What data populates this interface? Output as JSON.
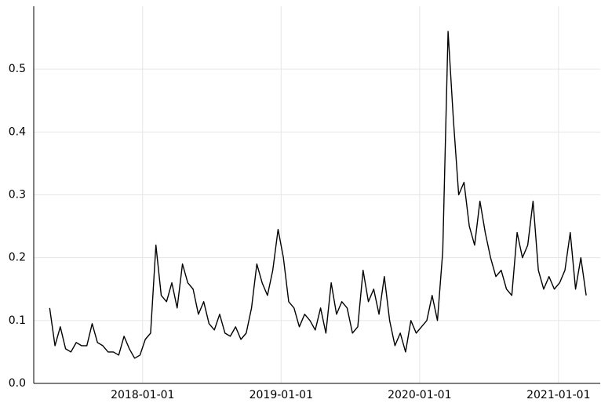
{
  "chart_data": {
    "type": "line",
    "x": [
      "2017-05-01",
      "2017-05-15",
      "2017-05-29",
      "2017-06-12",
      "2017-06-26",
      "2017-07-10",
      "2017-07-24",
      "2017-08-07",
      "2017-08-21",
      "2017-09-04",
      "2017-09-18",
      "2017-10-02",
      "2017-10-16",
      "2017-10-30",
      "2017-11-13",
      "2017-11-27",
      "2017-12-11",
      "2017-12-25",
      "2018-01-08",
      "2018-01-22",
      "2018-02-05",
      "2018-02-19",
      "2018-03-05",
      "2018-03-19",
      "2018-04-02",
      "2018-04-16",
      "2018-04-30",
      "2018-05-14",
      "2018-05-28",
      "2018-06-11",
      "2018-06-25",
      "2018-07-09",
      "2018-07-23",
      "2018-08-06",
      "2018-08-20",
      "2018-09-03",
      "2018-09-17",
      "2018-10-01",
      "2018-10-15",
      "2018-10-29",
      "2018-11-12",
      "2018-11-26",
      "2018-12-10",
      "2018-12-24",
      "2019-01-07",
      "2019-01-21",
      "2019-02-04",
      "2019-02-18",
      "2019-03-04",
      "2019-03-18",
      "2019-04-01",
      "2019-04-15",
      "2019-04-29",
      "2019-05-13",
      "2019-05-27",
      "2019-06-10",
      "2019-06-24",
      "2019-07-08",
      "2019-07-22",
      "2019-08-05",
      "2019-08-19",
      "2019-09-02",
      "2019-09-16",
      "2019-09-30",
      "2019-10-14",
      "2019-10-28",
      "2019-11-11",
      "2019-11-25",
      "2019-12-09",
      "2019-12-23",
      "2020-01-06",
      "2020-01-20",
      "2020-02-03",
      "2020-02-17",
      "2020-03-02",
      "2020-03-16",
      "2020-03-30",
      "2020-04-13",
      "2020-04-27",
      "2020-05-11",
      "2020-05-25",
      "2020-06-08",
      "2020-06-22",
      "2020-07-06",
      "2020-07-20",
      "2020-08-03",
      "2020-08-17",
      "2020-08-31",
      "2020-09-14",
      "2020-09-28",
      "2020-10-12",
      "2020-10-26",
      "2020-11-09",
      "2020-11-23",
      "2020-12-07",
      "2020-12-21",
      "2021-01-04",
      "2021-01-18",
      "2021-02-01",
      "2021-02-15",
      "2021-03-01",
      "2021-03-15"
    ],
    "series": [
      {
        "color": "#000000",
        "values": [
          0.12,
          0.06,
          0.09,
          0.055,
          0.05,
          0.065,
          0.06,
          0.06,
          0.095,
          0.065,
          0.06,
          0.05,
          0.05,
          0.045,
          0.075,
          0.055,
          0.04,
          0.045,
          0.07,
          0.08,
          0.22,
          0.14,
          0.13,
          0.16,
          0.12,
          0.19,
          0.16,
          0.15,
          0.11,
          0.13,
          0.095,
          0.085,
          0.11,
          0.08,
          0.075,
          0.09,
          0.07,
          0.08,
          0.12,
          0.19,
          0.16,
          0.14,
          0.18,
          0.245,
          0.2,
          0.13,
          0.12,
          0.09,
          0.11,
          0.1,
          0.085,
          0.12,
          0.08,
          0.16,
          0.11,
          0.13,
          0.12,
          0.08,
          0.09,
          0.18,
          0.13,
          0.15,
          0.11,
          0.17,
          0.1,
          0.06,
          0.08,
          0.05,
          0.1,
          0.08,
          0.09,
          0.1,
          0.14,
          0.1,
          0.21,
          0.56,
          0.42,
          0.3,
          0.32,
          0.25,
          0.22,
          0.29,
          0.24,
          0.2,
          0.17,
          0.18,
          0.15,
          0.14,
          0.24,
          0.2,
          0.22,
          0.29,
          0.18,
          0.15,
          0.17,
          0.15,
          0.16,
          0.18,
          0.24,
          0.15,
          0.2,
          0.14
        ]
      }
    ],
    "xlim": [
      "2017-03-20",
      "2021-04-21"
    ],
    "xticks": [
      "2018-01-01",
      "2019-01-01",
      "2020-01-01",
      "2021-01-01"
    ],
    "ylim": [
      0,
      0.6
    ],
    "yticks": [
      {
        "value": 0,
        "label": "0.0"
      },
      0.1,
      0.2,
      0.3,
      0.4,
      0.5
    ],
    "grid": true
  }
}
